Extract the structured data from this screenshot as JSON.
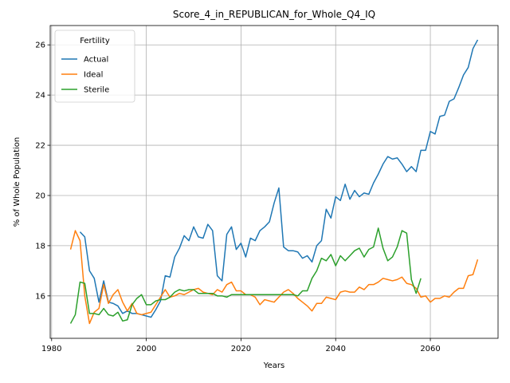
{
  "chart_data": {
    "type": "line",
    "title": "Score_4_in_REPUBLICAN_for_Whole_Q4_IQ",
    "xlabel": "Years",
    "ylabel": "% of Whole Population",
    "xlim": [
      1979.7,
      2074.3
    ],
    "ylim": [
      14.31,
      26.77
    ],
    "xticks": [
      1980,
      2000,
      2020,
      2040,
      2060
    ],
    "yticks": [
      16,
      18,
      20,
      22,
      24,
      26
    ],
    "grid": true,
    "legend_title": "Fertility",
    "legend_loc": "upper left",
    "series": [
      {
        "name": "Actual",
        "color": "#1f77b4",
        "x": [
          1986,
          1987,
          1988,
          1989,
          1990,
          1991,
          1992,
          1993,
          1994,
          1995,
          1996,
          1997,
          1998,
          1999,
          2000,
          2001,
          2002,
          2003,
          2004,
          2005,
          2006,
          2007,
          2008,
          2009,
          2010,
          2011,
          2012,
          2013,
          2014,
          2015,
          2016,
          2017,
          2018,
          2019,
          2020,
          2021,
          2022,
          2023,
          2024,
          2025,
          2026,
          2027,
          2028,
          2029,
          2030,
          2031,
          2032,
          2033,
          2034,
          2035,
          2036,
          2037,
          2038,
          2039,
          2040,
          2041,
          2042,
          2043,
          2044,
          2045,
          2046,
          2047,
          2048,
          2049,
          2050,
          2051,
          2052,
          2053,
          2054,
          2055,
          2056,
          2057,
          2058,
          2059,
          2060,
          2061,
          2062,
          2063,
          2064,
          2065,
          2066,
          2067,
          2068,
          2069,
          2070
        ],
        "values": [
          18.55,
          18.35,
          17.0,
          16.7,
          15.75,
          16.6,
          15.75,
          15.7,
          15.6,
          15.3,
          15.4,
          15.3,
          15.3,
          15.25,
          15.2,
          15.15,
          15.45,
          15.8,
          16.8,
          16.75,
          17.55,
          17.9,
          18.4,
          18.2,
          18.75,
          18.35,
          18.3,
          18.85,
          18.6,
          16.8,
          16.6,
          18.45,
          18.75,
          17.85,
          18.1,
          17.55,
          18.3,
          18.2,
          18.6,
          18.75,
          18.95,
          19.7,
          20.3,
          17.95,
          17.8,
          17.8,
          17.75,
          17.5,
          17.6,
          17.35,
          18.0,
          18.2,
          19.45,
          19.1,
          19.95,
          19.8,
          20.45,
          19.85,
          20.2,
          19.95,
          20.1,
          20.05,
          20.5,
          20.85,
          21.25,
          21.55,
          21.45,
          21.5,
          21.25,
          20.95,
          21.15,
          20.95,
          21.8,
          21.8,
          22.55,
          22.45,
          23.15,
          23.2,
          23.75,
          23.85,
          24.3,
          24.8,
          25.1,
          25.85,
          26.2
        ]
      },
      {
        "name": "Ideal",
        "color": "#ff7f0e",
        "x": [
          1984,
          1985,
          1986,
          1987,
          1988,
          1989,
          1990,
          1991,
          1992,
          1993,
          1994,
          1995,
          1996,
          1997,
          1998,
          1999,
          2000,
          2001,
          2002,
          2003,
          2004,
          2005,
          2006,
          2007,
          2008,
          2009,
          2010,
          2011,
          2012,
          2013,
          2014,
          2015,
          2016,
          2017,
          2018,
          2019,
          2020,
          2021,
          2022,
          2023,
          2024,
          2025,
          2026,
          2027,
          2028,
          2029,
          2030,
          2031,
          2032,
          2033,
          2034,
          2035,
          2036,
          2037,
          2038,
          2039,
          2040,
          2041,
          2042,
          2043,
          2044,
          2045,
          2046,
          2047,
          2048,
          2049,
          2050,
          2051,
          2052,
          2053,
          2054,
          2055,
          2056,
          2057,
          2058,
          2059,
          2060,
          2061,
          2062,
          2063,
          2064,
          2065,
          2066,
          2067,
          2068,
          2069,
          2070
        ],
        "values": [
          17.85,
          18.6,
          18.2,
          16.0,
          14.9,
          15.35,
          15.5,
          16.45,
          15.7,
          16.05,
          16.25,
          15.75,
          15.4,
          15.7,
          15.3,
          15.25,
          15.3,
          15.35,
          15.65,
          15.95,
          16.25,
          15.95,
          16.0,
          16.1,
          16.05,
          16.15,
          16.25,
          16.3,
          16.15,
          16.1,
          16.05,
          16.25,
          16.15,
          16.45,
          16.55,
          16.2,
          16.2,
          16.05,
          16.05,
          15.95,
          15.65,
          15.85,
          15.8,
          15.75,
          15.95,
          16.15,
          16.25,
          16.1,
          15.9,
          15.75,
          15.6,
          15.4,
          15.7,
          15.7,
          15.95,
          15.9,
          15.85,
          16.15,
          16.2,
          16.15,
          16.15,
          16.35,
          16.25,
          16.45,
          16.45,
          16.55,
          16.7,
          16.65,
          16.6,
          16.65,
          16.75,
          16.5,
          16.45,
          16.3,
          15.95,
          16.0,
          15.75,
          15.9,
          15.9,
          16.0,
          15.95,
          16.15,
          16.3,
          16.3,
          16.8,
          16.85,
          17.45
        ]
      },
      {
        "name": "Sterile",
        "color": "#2ca02c",
        "x": [
          1984,
          1985,
          1986,
          1987,
          1988,
          1989,
          1990,
          1991,
          1992,
          1993,
          1994,
          1995,
          1996,
          1997,
          1998,
          1999,
          2000,
          2001,
          2002,
          2003,
          2004,
          2005,
          2006,
          2007,
          2008,
          2009,
          2010,
          2011,
          2012,
          2013,
          2014,
          2015,
          2016,
          2017,
          2018,
          2019,
          2020,
          2021,
          2022,
          2023,
          2024,
          2025,
          2026,
          2027,
          2028,
          2029,
          2030,
          2031,
          2032,
          2033,
          2034,
          2035,
          2036,
          2037,
          2038,
          2039,
          2040,
          2041,
          2042,
          2043,
          2044,
          2045,
          2046,
          2047,
          2048,
          2049,
          2050,
          2051,
          2052,
          2053,
          2054,
          2055,
          2056,
          2057,
          2058
        ],
        "values": [
          14.9,
          15.25,
          16.55,
          16.5,
          15.3,
          15.3,
          15.25,
          15.5,
          15.25,
          15.2,
          15.35,
          15.0,
          15.05,
          15.65,
          15.9,
          16.05,
          15.65,
          15.65,
          15.8,
          15.85,
          15.85,
          15.95,
          16.15,
          16.25,
          16.2,
          16.25,
          16.25,
          16.1,
          16.1,
          16.1,
          16.1,
          16.0,
          16.0,
          15.95,
          16.05,
          16.05,
          16.05,
          16.05,
          16.05,
          16.05,
          16.05,
          16.05,
          16.05,
          16.05,
          16.05,
          16.05,
          16.05,
          16.05,
          16.0,
          16.2,
          16.2,
          16.7,
          17.0,
          17.5,
          17.4,
          17.65,
          17.2,
          17.6,
          17.4,
          17.6,
          17.8,
          17.9,
          17.55,
          17.85,
          17.95,
          18.7,
          17.9,
          17.4,
          17.55,
          17.95,
          18.6,
          18.5,
          16.65,
          16.1,
          16.7
        ]
      }
    ]
  }
}
